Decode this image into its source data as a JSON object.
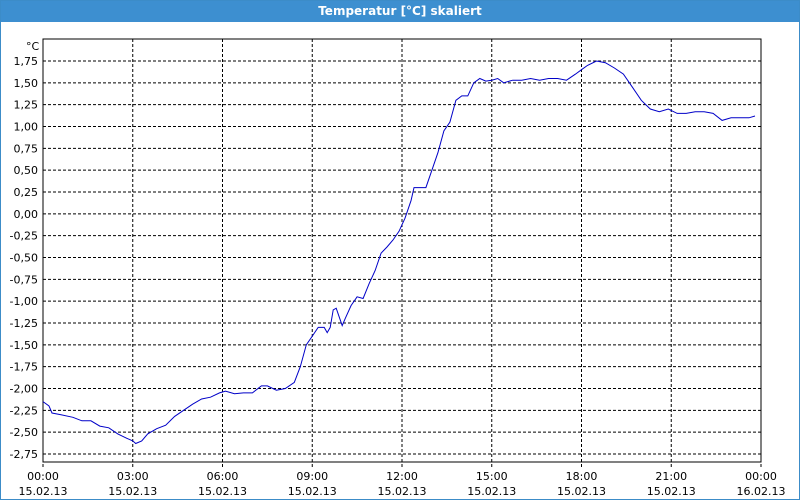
{
  "window": {
    "title": "Temperatur [°C] skaliert"
  },
  "colors": {
    "titlebar": "#3d8fd0",
    "line": "#0000c8",
    "grid": "#000000"
  },
  "chart_data": {
    "type": "line",
    "title": "Temperatur [°C] skaliert",
    "ylabel": "°C",
    "xlabel": "",
    "ylim": [
      -2.75,
      1.85
    ],
    "grid": true,
    "y_ticks": [
      "1,75",
      "1,50",
      "1,25",
      "1,00",
      "0,75",
      "0,50",
      "0,25",
      "0,00",
      "-0,25",
      "-0,50",
      "-0,75",
      "-1,00",
      "-1,25",
      "-1,50",
      "-1,75",
      "-2,00",
      "-2,25",
      "-2,50",
      "-2,75"
    ],
    "x_ticks": [
      {
        "time": "00:00",
        "date": "15.02.13"
      },
      {
        "time": "03:00",
        "date": "15.02.13"
      },
      {
        "time": "06:00",
        "date": "15.02.13"
      },
      {
        "time": "09:00",
        "date": "15.02.13"
      },
      {
        "time": "12:00",
        "date": "15.02.13"
      },
      {
        "time": "15:00",
        "date": "15.02.13"
      },
      {
        "time": "18:00",
        "date": "15.02.13"
      },
      {
        "time": "21:00",
        "date": "15.02.13"
      },
      {
        "time": "00:00",
        "date": "16.02.13"
      }
    ],
    "x_hours_range": [
      0,
      24
    ],
    "series": [
      {
        "x_hours": [
          0.0,
          0.2,
          0.3,
          0.6,
          1.0,
          1.3,
          1.6,
          1.9,
          2.2,
          2.5,
          2.8,
          3.0,
          3.1,
          3.3,
          3.5,
          3.8,
          4.1,
          4.4,
          4.7,
          5.0,
          5.3,
          5.6,
          5.9,
          6.1,
          6.4,
          6.7,
          7.0,
          7.3,
          7.5,
          7.8,
          8.1,
          8.4,
          8.6,
          8.8,
          9.0,
          9.2,
          9.4,
          9.5,
          9.6,
          9.7,
          9.8,
          9.9,
          10.0,
          10.1,
          10.3,
          10.5,
          10.7,
          10.9,
          11.1,
          11.3,
          11.5,
          11.7,
          11.9,
          12.1,
          12.3,
          12.4,
          12.6,
          12.8,
          13.0,
          13.2,
          13.4,
          13.6,
          13.8,
          14.0,
          14.2,
          14.4,
          14.6,
          14.8,
          15.0,
          15.2,
          15.4,
          15.7,
          16.0,
          16.3,
          16.6,
          16.9,
          17.2,
          17.5,
          17.8,
          18.0,
          18.2,
          18.5,
          18.8,
          19.1,
          19.4,
          19.7,
          20.0,
          20.3,
          20.6,
          20.9,
          21.2,
          21.5,
          21.8,
          22.1,
          22.4,
          22.7,
          23.0,
          23.3,
          23.6,
          23.8
        ],
        "y": [
          -2.15,
          -2.2,
          -2.28,
          -2.3,
          -2.33,
          -2.37,
          -2.37,
          -2.43,
          -2.45,
          -2.52,
          -2.57,
          -2.6,
          -2.63,
          -2.6,
          -2.52,
          -2.46,
          -2.42,
          -2.32,
          -2.25,
          -2.18,
          -2.12,
          -2.1,
          -2.05,
          -2.03,
          -2.06,
          -2.05,
          -2.05,
          -1.97,
          -1.97,
          -2.02,
          -2.0,
          -1.93,
          -1.75,
          -1.5,
          -1.4,
          -1.3,
          -1.3,
          -1.36,
          -1.3,
          -1.1,
          -1.08,
          -1.18,
          -1.28,
          -1.2,
          -1.05,
          -0.95,
          -0.97,
          -0.8,
          -0.65,
          -0.45,
          -0.38,
          -0.3,
          -0.2,
          -0.05,
          0.15,
          0.3,
          0.3,
          0.3,
          0.5,
          0.7,
          0.95,
          1.05,
          1.3,
          1.35,
          1.35,
          1.5,
          1.55,
          1.52,
          1.53,
          1.55,
          1.5,
          1.53,
          1.53,
          1.55,
          1.53,
          1.55,
          1.55,
          1.53,
          1.6,
          1.65,
          1.7,
          1.75,
          1.73,
          1.67,
          1.6,
          1.45,
          1.3,
          1.2,
          1.17,
          1.2,
          1.15,
          1.15,
          1.17,
          1.17,
          1.15,
          1.07,
          1.1,
          1.1,
          1.1,
          1.12
        ]
      }
    ]
  }
}
